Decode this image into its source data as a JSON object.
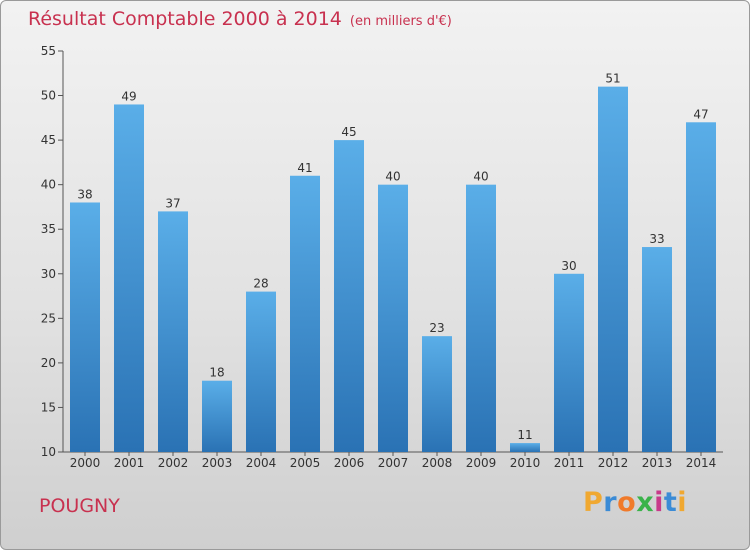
{
  "title": "Résultat Comptable 2000 à 2014",
  "subtitle": "(en milliers d'€)",
  "city": "POUGNY",
  "logo": {
    "letters": [
      "P",
      "r",
      "o",
      "x",
      "i",
      "t",
      "i"
    ],
    "colors": [
      "#f0a830",
      "#3a8bd6",
      "#f07a2a",
      "#3ab34a",
      "#c83a8a",
      "#3a8bd6",
      "#f0a830"
    ]
  },
  "colors": {
    "bar_top": "#5aaee8",
    "bar_bottom": "#2a72b4",
    "title": "#c8314f"
  },
  "chart_data": {
    "type": "bar",
    "title": "Résultat Comptable 2000 à 2014",
    "ylabel": "en milliers d'€",
    "categories": [
      "2000",
      "2001",
      "2002",
      "2003",
      "2004",
      "2005",
      "2006",
      "2007",
      "2008",
      "2009",
      "2010",
      "2011",
      "2012",
      "2013",
      "2014"
    ],
    "values": [
      38,
      49,
      37,
      18,
      28,
      41,
      45,
      40,
      23,
      40,
      11,
      30,
      51,
      33,
      47
    ],
    "ylim": [
      10,
      55
    ],
    "yticks": [
      10,
      15,
      20,
      25,
      30,
      35,
      40,
      45,
      50,
      55
    ],
    "grid": false
  }
}
